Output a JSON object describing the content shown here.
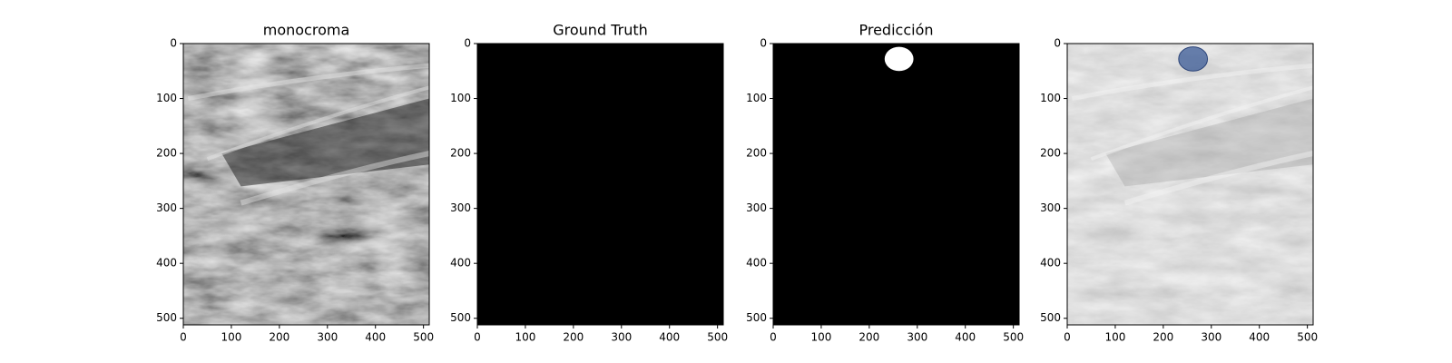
{
  "chart_data": [
    {
      "type": "image",
      "title": "monocroma",
      "xlim": [
        0,
        512
      ],
      "ylim": [
        512,
        0
      ],
      "xticks": [
        0,
        100,
        200,
        300,
        400,
        500
      ],
      "yticks": [
        0,
        100,
        200,
        300,
        400,
        500
      ]
    },
    {
      "type": "image",
      "title": "Ground Truth",
      "xlim": [
        0,
        512
      ],
      "ylim": [
        512,
        0
      ],
      "xticks": [
        0,
        100,
        200,
        300,
        400,
        500
      ],
      "yticks": [
        0,
        100,
        200,
        300,
        400,
        500
      ]
    },
    {
      "type": "image",
      "title": "Predicción",
      "xlim": [
        0,
        512
      ],
      "ylim": [
        512,
        0
      ],
      "xticks": [
        0,
        100,
        200,
        300,
        400,
        500
      ],
      "yticks": [
        0,
        100,
        200,
        300,
        400,
        500
      ]
    },
    {
      "type": "image",
      "xlim": [
        0,
        512
      ],
      "ylim": [
        512,
        0
      ],
      "xticks": [
        0,
        100,
        200,
        300,
        400,
        500
      ],
      "yticks": [
        0,
        100,
        200,
        300,
        400,
        500
      ]
    }
  ]
}
